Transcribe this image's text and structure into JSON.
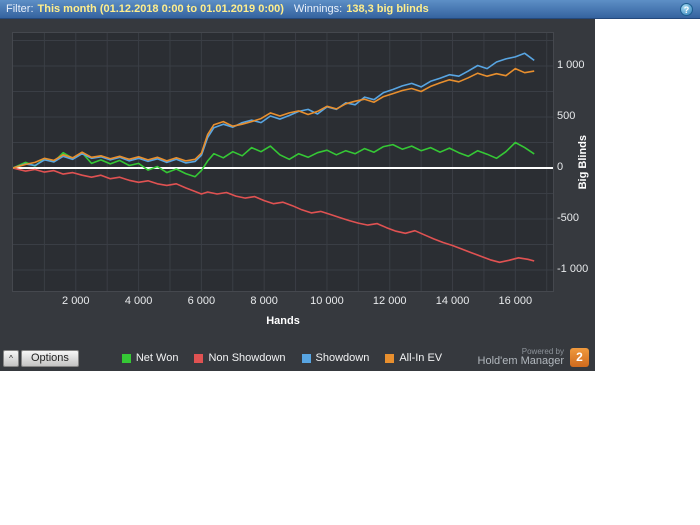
{
  "filter_bar": {
    "filter_label": "Filter:",
    "filter_value": "This month (01.12.2018 0:00 to 01.01.2019 0:00)",
    "winnings_label": "Winnings:",
    "winnings_value": "138,3 big blinds",
    "help_glyph": "?"
  },
  "bottom_bar": {
    "options_chevron": "^",
    "options_label": "Options",
    "powered_by": "Powered by",
    "brand": "Hold'em Manager",
    "logo_text": "2"
  },
  "chart_data": {
    "type": "line",
    "title": "",
    "xlabel": "Hands",
    "ylabel": "Big Blinds",
    "x_max": 17200,
    "x_grid_step": 1000,
    "y_grid_step": 250,
    "ylim": [
      -1206,
      1324
    ],
    "grid_on": true,
    "grid_color": "#3a3e45",
    "zero_line_color": "#ffffff",
    "legend_position": "bottom",
    "x_ticks": [
      {
        "value": 2000,
        "label": "2 000"
      },
      {
        "value": 4000,
        "label": "4 000"
      },
      {
        "value": 6000,
        "label": "6 000"
      },
      {
        "value": 8000,
        "label": "8 000"
      },
      {
        "value": 10000,
        "label": "10 000"
      },
      {
        "value": 12000,
        "label": "12 000"
      },
      {
        "value": 14000,
        "label": "14 000"
      },
      {
        "value": 16000,
        "label": "16 000"
      }
    ],
    "y_ticks": [
      {
        "value": 1000,
        "label": "1 000"
      },
      {
        "value": 500,
        "label": "500"
      },
      {
        "value": 0,
        "label": "0"
      },
      {
        "value": -500,
        "label": "-500"
      },
      {
        "value": -1000,
        "label": "-1 000"
      }
    ],
    "series": [
      {
        "name": "Net Won",
        "color": "#35c835",
        "final_value": 138.3,
        "points": [
          [
            0,
            0
          ],
          [
            400,
            55
          ],
          [
            700,
            20
          ],
          [
            1000,
            90
          ],
          [
            1300,
            60
          ],
          [
            1600,
            150
          ],
          [
            1900,
            95
          ],
          [
            2200,
            150
          ],
          [
            2500,
            45
          ],
          [
            2800,
            80
          ],
          [
            3100,
            40
          ],
          [
            3400,
            75
          ],
          [
            3700,
            25
          ],
          [
            4000,
            45
          ],
          [
            4300,
            -20
          ],
          [
            4600,
            15
          ],
          [
            4900,
            -45
          ],
          [
            5200,
            -10
          ],
          [
            5500,
            -55
          ],
          [
            5800,
            -85
          ],
          [
            6000,
            -25
          ],
          [
            6200,
            70
          ],
          [
            6400,
            140
          ],
          [
            6700,
            100
          ],
          [
            7000,
            160
          ],
          [
            7300,
            120
          ],
          [
            7600,
            200
          ],
          [
            7900,
            160
          ],
          [
            8200,
            215
          ],
          [
            8500,
            130
          ],
          [
            8800,
            85
          ],
          [
            9100,
            140
          ],
          [
            9400,
            105
          ],
          [
            9700,
            150
          ],
          [
            10000,
            175
          ],
          [
            10300,
            130
          ],
          [
            10600,
            170
          ],
          [
            10900,
            140
          ],
          [
            11200,
            190
          ],
          [
            11500,
            155
          ],
          [
            11800,
            210
          ],
          [
            12100,
            230
          ],
          [
            12400,
            185
          ],
          [
            12700,
            215
          ],
          [
            13000,
            170
          ],
          [
            13300,
            200
          ],
          [
            13600,
            155
          ],
          [
            13900,
            195
          ],
          [
            14200,
            150
          ],
          [
            14500,
            115
          ],
          [
            14800,
            170
          ],
          [
            15100,
            135
          ],
          [
            15400,
            95
          ],
          [
            15700,
            160
          ],
          [
            16000,
            250
          ],
          [
            16300,
            200
          ],
          [
            16600,
            138
          ]
        ]
      },
      {
        "name": "Non Showdown",
        "color": "#e05252",
        "final_value": -912,
        "points": [
          [
            0,
            0
          ],
          [
            400,
            -30
          ],
          [
            700,
            -15
          ],
          [
            1000,
            -40
          ],
          [
            1300,
            -25
          ],
          [
            1600,
            -60
          ],
          [
            1900,
            -45
          ],
          [
            2200,
            -70
          ],
          [
            2500,
            -90
          ],
          [
            2800,
            -70
          ],
          [
            3100,
            -105
          ],
          [
            3400,
            -90
          ],
          [
            3700,
            -120
          ],
          [
            4000,
            -140
          ],
          [
            4300,
            -125
          ],
          [
            4600,
            -155
          ],
          [
            4900,
            -170
          ],
          [
            5200,
            -155
          ],
          [
            5500,
            -195
          ],
          [
            5800,
            -230
          ],
          [
            6000,
            -255
          ],
          [
            6200,
            -235
          ],
          [
            6500,
            -255
          ],
          [
            6800,
            -240
          ],
          [
            7100,
            -275
          ],
          [
            7400,
            -295
          ],
          [
            7700,
            -280
          ],
          [
            8000,
            -320
          ],
          [
            8300,
            -350
          ],
          [
            8600,
            -335
          ],
          [
            8900,
            -370
          ],
          [
            9200,
            -410
          ],
          [
            9500,
            -440
          ],
          [
            9800,
            -425
          ],
          [
            10100,
            -455
          ],
          [
            10400,
            -485
          ],
          [
            10700,
            -515
          ],
          [
            11000,
            -540
          ],
          [
            11300,
            -560
          ],
          [
            11600,
            -545
          ],
          [
            11900,
            -585
          ],
          [
            12200,
            -620
          ],
          [
            12500,
            -640
          ],
          [
            12800,
            -615
          ],
          [
            13100,
            -655
          ],
          [
            13400,
            -695
          ],
          [
            13700,
            -730
          ],
          [
            14000,
            -760
          ],
          [
            14300,
            -795
          ],
          [
            14600,
            -830
          ],
          [
            14900,
            -865
          ],
          [
            15200,
            -900
          ],
          [
            15500,
            -925
          ],
          [
            15800,
            -905
          ],
          [
            16100,
            -880
          ],
          [
            16400,
            -895
          ],
          [
            16600,
            -912
          ]
        ]
      },
      {
        "name": "Showdown",
        "color": "#58a5e2",
        "final_value": 1055,
        "points": [
          [
            0,
            0
          ],
          [
            400,
            40
          ],
          [
            700,
            25
          ],
          [
            1000,
            80
          ],
          [
            1300,
            60
          ],
          [
            1600,
            115
          ],
          [
            1900,
            85
          ],
          [
            2200,
            140
          ],
          [
            2500,
            95
          ],
          [
            2800,
            110
          ],
          [
            3100,
            80
          ],
          [
            3400,
            105
          ],
          [
            3700,
            70
          ],
          [
            4000,
            95
          ],
          [
            4300,
            65
          ],
          [
            4600,
            90
          ],
          [
            4900,
            55
          ],
          [
            5200,
            85
          ],
          [
            5500,
            50
          ],
          [
            5800,
            65
          ],
          [
            6000,
            125
          ],
          [
            6200,
            300
          ],
          [
            6400,
            395
          ],
          [
            6700,
            430
          ],
          [
            7000,
            400
          ],
          [
            7300,
            445
          ],
          [
            7600,
            470
          ],
          [
            7900,
            445
          ],
          [
            8200,
            510
          ],
          [
            8500,
            480
          ],
          [
            8800,
            515
          ],
          [
            9100,
            555
          ],
          [
            9400,
            575
          ],
          [
            9700,
            530
          ],
          [
            10000,
            600
          ],
          [
            10300,
            575
          ],
          [
            10600,
            640
          ],
          [
            10900,
            620
          ],
          [
            11200,
            695
          ],
          [
            11500,
            670
          ],
          [
            11800,
            740
          ],
          [
            12100,
            770
          ],
          [
            12400,
            805
          ],
          [
            12700,
            830
          ],
          [
            13000,
            795
          ],
          [
            13300,
            850
          ],
          [
            13600,
            880
          ],
          [
            13900,
            915
          ],
          [
            14200,
            900
          ],
          [
            14500,
            950
          ],
          [
            14800,
            1005
          ],
          [
            15100,
            975
          ],
          [
            15400,
            1040
          ],
          [
            15700,
            1070
          ],
          [
            16000,
            1090
          ],
          [
            16300,
            1125
          ],
          [
            16600,
            1055
          ]
        ]
      },
      {
        "name": "All-In EV",
        "color": "#e88f2e",
        "final_value": 950,
        "points": [
          [
            0,
            0
          ],
          [
            400,
            35
          ],
          [
            700,
            55
          ],
          [
            1000,
            95
          ],
          [
            1300,
            75
          ],
          [
            1600,
            130
          ],
          [
            1900,
            100
          ],
          [
            2200,
            155
          ],
          [
            2500,
            105
          ],
          [
            2800,
            120
          ],
          [
            3100,
            90
          ],
          [
            3400,
            115
          ],
          [
            3700,
            85
          ],
          [
            4000,
            110
          ],
          [
            4300,
            80
          ],
          [
            4600,
            105
          ],
          [
            4900,
            70
          ],
          [
            5200,
            100
          ],
          [
            5500,
            70
          ],
          [
            5800,
            85
          ],
          [
            6000,
            145
          ],
          [
            6200,
            330
          ],
          [
            6400,
            425
          ],
          [
            6700,
            455
          ],
          [
            7000,
            410
          ],
          [
            7300,
            430
          ],
          [
            7600,
            455
          ],
          [
            7900,
            485
          ],
          [
            8200,
            540
          ],
          [
            8500,
            510
          ],
          [
            8800,
            540
          ],
          [
            9100,
            560
          ],
          [
            9400,
            525
          ],
          [
            9700,
            555
          ],
          [
            10000,
            605
          ],
          [
            10300,
            580
          ],
          [
            10600,
            630
          ],
          [
            10900,
            655
          ],
          [
            11200,
            675
          ],
          [
            11500,
            645
          ],
          [
            11800,
            700
          ],
          [
            12100,
            730
          ],
          [
            12400,
            760
          ],
          [
            12700,
            780
          ],
          [
            13000,
            750
          ],
          [
            13300,
            800
          ],
          [
            13600,
            835
          ],
          [
            13900,
            865
          ],
          [
            14200,
            845
          ],
          [
            14500,
            885
          ],
          [
            14800,
            930
          ],
          [
            15100,
            900
          ],
          [
            15400,
            925
          ],
          [
            15700,
            905
          ],
          [
            16000,
            975
          ],
          [
            16300,
            935
          ],
          [
            16600,
            950
          ]
        ]
      }
    ]
  }
}
